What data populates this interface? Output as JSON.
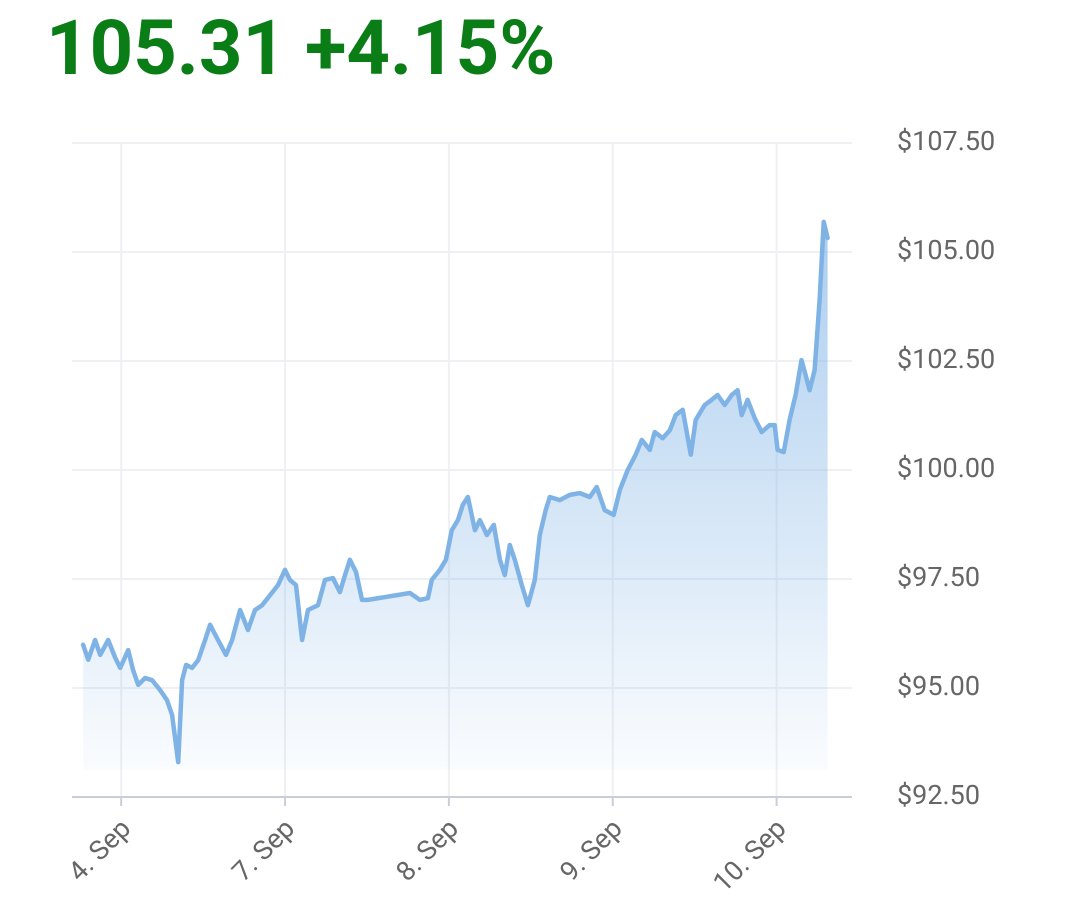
{
  "chart_data": {
    "type": "area",
    "title": "105.31 +4.15%",
    "title_color": "#0b7d16",
    "color": "#7fb3e6",
    "grid": true,
    "x": [
      -0.232,
      -0.201,
      -0.159,
      -0.128,
      -0.079,
      -0.037,
      -0.006,
      0.043,
      0.073,
      0.104,
      0.146,
      0.189,
      0.238,
      0.28,
      0.311,
      0.348,
      0.372,
      0.396,
      0.433,
      0.47,
      0.512,
      0.543,
      0.591,
      0.64,
      0.677,
      0.726,
      0.774,
      0.817,
      0.86,
      0.909,
      0.957,
      1.0,
      1.03,
      1.067,
      1.104,
      1.14,
      1.201,
      1.244,
      1.293,
      1.335,
      1.366,
      1.396,
      1.433,
      1.47,
      1.506,
      1.762,
      1.823,
      1.872,
      1.896,
      1.945,
      1.982,
      2.018,
      2.055,
      2.085,
      2.116,
      2.159,
      2.189,
      2.232,
      2.274,
      2.311,
      2.341,
      2.372,
      2.402,
      2.445,
      2.482,
      2.524,
      2.555,
      2.591,
      2.616,
      2.677,
      2.738,
      2.799,
      2.86,
      2.902,
      2.951,
      3.006,
      3.043,
      3.091,
      3.14,
      3.177,
      3.226,
      3.256,
      3.305,
      3.348,
      3.384,
      3.427,
      3.476,
      3.506,
      3.561,
      3.604,
      3.64,
      3.683,
      3.726,
      3.762,
      3.787,
      3.823,
      3.866,
      3.909,
      3.957,
      3.988,
      4.006,
      4.043,
      4.079,
      4.116,
      4.152,
      4.177,
      4.201,
      4.232,
      4.262,
      4.287,
      4.311
    ],
    "values": [
      95.99,
      95.65,
      96.1,
      95.76,
      96.1,
      95.7,
      95.46,
      95.87,
      95.41,
      95.07,
      95.23,
      95.18,
      94.95,
      94.72,
      94.38,
      93.3,
      95.18,
      95.53,
      95.46,
      95.64,
      96.1,
      96.45,
      96.1,
      95.76,
      96.1,
      96.79,
      96.33,
      96.79,
      96.9,
      97.13,
      97.36,
      97.71,
      97.48,
      97.36,
      96.1,
      96.79,
      96.9,
      97.48,
      97.52,
      97.2,
      97.59,
      97.94,
      97.66,
      97.02,
      97.02,
      97.18,
      97.02,
      97.06,
      97.48,
      97.71,
      97.94,
      98.62,
      98.85,
      99.2,
      99.38,
      98.62,
      98.85,
      98.51,
      98.74,
      97.94,
      97.59,
      98.28,
      97.94,
      97.36,
      96.9,
      97.48,
      98.51,
      99.08,
      99.38,
      99.31,
      99.43,
      99.47,
      99.38,
      99.61,
      99.08,
      98.97,
      99.54,
      100.0,
      100.35,
      100.69,
      100.46,
      100.87,
      100.73,
      100.91,
      101.26,
      101.38,
      100.35,
      101.15,
      101.49,
      101.61,
      101.72,
      101.49,
      101.72,
      101.83,
      101.26,
      101.61,
      101.19,
      100.87,
      101.03,
      101.03,
      100.46,
      100.41,
      101.15,
      101.72,
      102.52,
      102.18,
      101.83,
      102.29,
      103.9,
      105.69,
      105.32
    ],
    "xlim": [
      -0.3,
      4.46
    ],
    "xticks": [
      {
        "value": 0,
        "label": "4. Sep"
      },
      {
        "value": 1,
        "label": "7. Sep"
      },
      {
        "value": 2,
        "label": "8. Sep"
      },
      {
        "value": 3,
        "label": "9. Sep"
      },
      {
        "value": 4,
        "label": "10. Sep"
      }
    ],
    "ylim": [
      92.5,
      107.5
    ],
    "yticks": [
      {
        "value": 92.5,
        "label": "$92.50"
      },
      {
        "value": 95,
        "label": "$95.00"
      },
      {
        "value": 97.5,
        "label": "$97.50"
      },
      {
        "value": 100,
        "label": "$100.00"
      },
      {
        "value": 102.5,
        "label": "$102.50"
      },
      {
        "value": 105,
        "label": "$105.00"
      },
      {
        "value": 107.5,
        "label": "$107.50"
      }
    ]
  }
}
